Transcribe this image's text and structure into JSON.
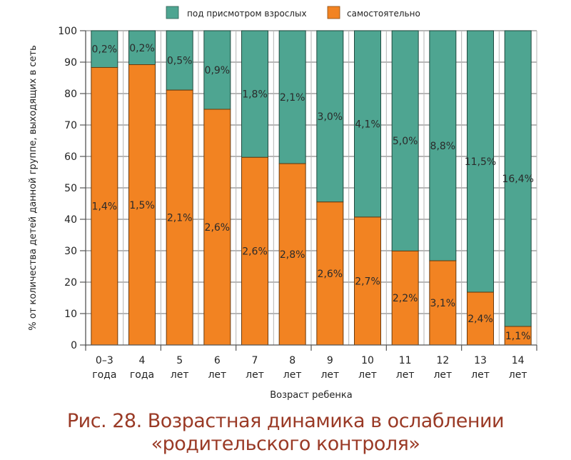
{
  "chart_data": {
    "type": "bar",
    "stacked": true,
    "caption_line1": "Рис. 28. Возрастная динамика в ослаблении",
    "caption_line2": "«родительского контроля»",
    "xlabel": "Возраст ребенка",
    "ylabel": "% от количества детей данной группе, выходящих в сеть",
    "ylim": [
      0,
      100
    ],
    "yticks": [
      "0",
      "10",
      "20",
      "30",
      "40",
      "50",
      "60",
      "70",
      "80",
      "90",
      "100"
    ],
    "grid": true,
    "legend_position": "top-center",
    "categories": [
      {
        "line1": "0–3",
        "line2": "года"
      },
      {
        "line1": "4",
        "line2": "года"
      },
      {
        "line1": "5",
        "line2": "лет"
      },
      {
        "line1": "6",
        "line2": "лет"
      },
      {
        "line1": "7",
        "line2": "лет"
      },
      {
        "line1": "8",
        "line2": "лет"
      },
      {
        "line1": "9",
        "line2": "лет"
      },
      {
        "line1": "10",
        "line2": "лет"
      },
      {
        "line1": "11",
        "line2": "лет"
      },
      {
        "line1": "12",
        "line2": "лет"
      },
      {
        "line1": "13",
        "line2": "лет"
      },
      {
        "line1": "14",
        "line2": "лет"
      }
    ],
    "series": [
      {
        "name": "самостоятельно",
        "color": "#f28322",
        "values": [
          88.3,
          89.2,
          81.1,
          75.0,
          59.7,
          57.7,
          45.5,
          40.7,
          29.9,
          26.8,
          16.8,
          5.9
        ],
        "labels": [
          "1,4%",
          "1,5%",
          "2,1%",
          "2,6%",
          "2,6%",
          "2,8%",
          "2,6%",
          "2,7%",
          "2,2%",
          "3,1%",
          "2,4%",
          "1,1%"
        ]
      },
      {
        "name": "под присмотром взрослых",
        "color": "#4ea591",
        "values": [
          11.7,
          10.8,
          18.9,
          25.0,
          40.3,
          42.3,
          54.5,
          59.3,
          70.1,
          73.2,
          83.2,
          94.1
        ],
        "labels": [
          "0,2%",
          "0,2%",
          "0,5%",
          "0,9%",
          "1,8%",
          "2,1%",
          "3,0%",
          "4,1%",
          "5,0%",
          "8,8%",
          "11,5%",
          "16,4%"
        ]
      }
    ],
    "legend": [
      {
        "label": "под присмотром взрослых",
        "color": "#4ea591"
      },
      {
        "label": "самостоятельно",
        "color": "#f28322"
      }
    ]
  }
}
